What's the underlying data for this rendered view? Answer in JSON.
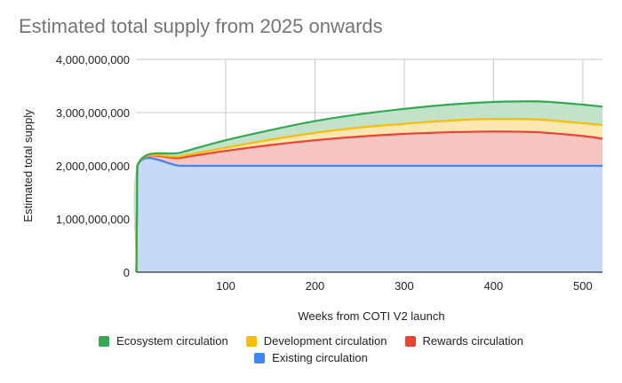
{
  "chart_data": {
    "type": "area",
    "stacked": true,
    "title": "Estimated total supply from 2025 onwards",
    "xlabel": "Weeks from COTI V2 launch",
    "ylabel": "Estimated total supply",
    "xlim": [
      0,
      522
    ],
    "ylim": [
      0,
      4000000000
    ],
    "xticks": [
      100,
      200,
      300,
      400,
      500
    ],
    "yticks": [
      0,
      1000000000,
      2000000000,
      3000000000,
      4000000000
    ],
    "ytick_labels": [
      "0",
      "1,000,000,000",
      "2,000,000,000",
      "3,000,000,000",
      "4,000,000,000"
    ],
    "grid": true,
    "legend_position": "bottom",
    "x": [
      0,
      1,
      50,
      100,
      150,
      200,
      250,
      300,
      350,
      400,
      450,
      500,
      522
    ],
    "series": [
      {
        "name": "Existing circulation",
        "color": "#4285f4",
        "fill": "#c6d9f7",
        "values": [
          0,
          2000000000,
          2000000000,
          2000000000,
          2000000000,
          2000000000,
          2000000000,
          2000000000,
          2000000000,
          2000000000,
          2000000000,
          2000000000,
          2000000000
        ]
      },
      {
        "name": "Rewards circulation",
        "color": "#ea4335",
        "fill": "#f7c5c1",
        "values": [
          0,
          0,
          150000000,
          280000000,
          390000000,
          480000000,
          550000000,
          600000000,
          630000000,
          645000000,
          630000000,
          560000000,
          510000000
        ]
      },
      {
        "name": "Development circulation",
        "color": "#fbbc04",
        "fill": "#fde7b0",
        "values": [
          0,
          0,
          30000000,
          60000000,
          100000000,
          140000000,
          170000000,
          190000000,
          220000000,
          235000000,
          240000000,
          240000000,
          260000000
        ]
      },
      {
        "name": "Ecosystem circulation",
        "color": "#34a853",
        "fill": "#c2e3c9",
        "values": [
          0,
          0,
          70000000,
          140000000,
          180000000,
          220000000,
          250000000,
          280000000,
          300000000,
          320000000,
          340000000,
          350000000,
          340000000
        ]
      }
    ],
    "legend_order": [
      "Ecosystem circulation",
      "Development circulation",
      "Rewards circulation",
      "Existing circulation"
    ]
  }
}
